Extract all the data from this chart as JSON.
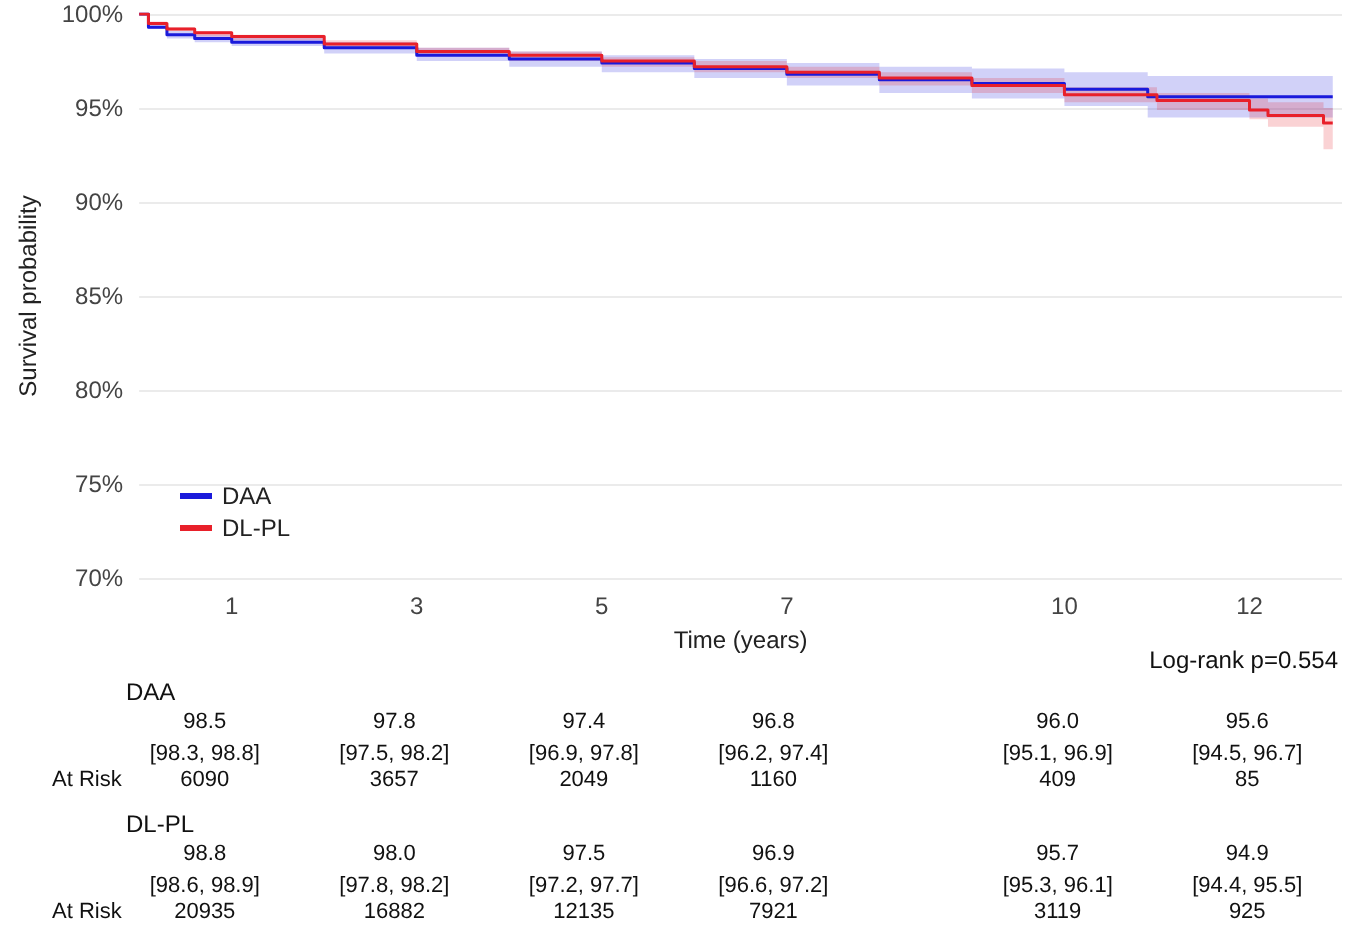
{
  "chart_data": {
    "type": "step",
    "xlabel": "Time (years)",
    "ylabel": "Survival probability",
    "xlim": [
      0,
      13
    ],
    "xticks": [
      1,
      3,
      5,
      7,
      10,
      12
    ],
    "ylim": [
      70,
      100
    ],
    "yticks": [
      {
        "value": 70,
        "label": "70%"
      },
      {
        "value": 75,
        "label": "75%"
      },
      {
        "value": 80,
        "label": "80%"
      },
      {
        "value": 85,
        "label": "85%"
      },
      {
        "value": 90,
        "label": "90%"
      },
      {
        "value": 95,
        "label": "95%"
      },
      {
        "value": 100,
        "label": "100%"
      }
    ],
    "grid": "y",
    "legend": "bottom left",
    "marker": "none",
    "line_style": "solid",
    "series": [
      {
        "name": "DAA",
        "color": "#1a1adb",
        "x": [
          0,
          0.1,
          0.3,
          0.6,
          1,
          2,
          3,
          4,
          5,
          6,
          7,
          8,
          9,
          10,
          10.9,
          12,
          12.9
        ],
        "values": [
          100,
          99.3,
          98.9,
          98.7,
          98.5,
          98.2,
          97.8,
          97.6,
          97.4,
          97.1,
          96.8,
          96.5,
          96.3,
          96.0,
          95.6,
          95.6,
          95.6
        ],
        "lower": [
          100,
          99.2,
          98.7,
          98.5,
          98.3,
          97.9,
          97.5,
          97.2,
          96.9,
          96.6,
          96.2,
          95.8,
          95.5,
          95.1,
          94.5,
          94.5,
          94.5
        ],
        "upper": [
          100,
          99.4,
          99.1,
          98.9,
          98.8,
          98.5,
          98.2,
          98.0,
          97.8,
          97.6,
          97.4,
          97.2,
          97.1,
          96.9,
          96.7,
          96.7,
          96.7
        ]
      },
      {
        "name": "DL-PL",
        "color": "#e8202a",
        "x": [
          0,
          0.1,
          0.3,
          0.6,
          1,
          2,
          3,
          4,
          5,
          6,
          7,
          8,
          9,
          10,
          11,
          12,
          12.2,
          12.8,
          12.9
        ],
        "values": [
          100,
          99.5,
          99.2,
          99.0,
          98.8,
          98.4,
          98.0,
          97.8,
          97.5,
          97.2,
          96.9,
          96.6,
          96.2,
          95.7,
          95.4,
          94.9,
          94.6,
          94.2,
          94.2
        ],
        "lower": [
          100,
          99.4,
          99.1,
          98.8,
          98.6,
          98.2,
          97.8,
          97.5,
          97.2,
          96.9,
          96.6,
          96.2,
          95.8,
          95.3,
          94.9,
          94.4,
          94.0,
          92.8,
          92.8
        ],
        "upper": [
          100,
          99.6,
          99.3,
          99.1,
          98.9,
          98.6,
          98.2,
          98.0,
          97.7,
          97.5,
          97.2,
          96.9,
          96.6,
          96.1,
          95.8,
          95.5,
          95.3,
          95.0,
          95.0
        ]
      }
    ],
    "annotations": [
      "Log-rank p=0.554",
      "DAA",
      "98.5",
      "97.8",
      "97.4",
      "96.8",
      "96.0",
      "95.6",
      "[98.3, 98.8]",
      "[97.5, 98.2]",
      "[96.9, 97.8]",
      "[96.2, 97.4]",
      "[95.1, 96.9]",
      "[94.5, 96.7]",
      "At Risk",
      "6090",
      "3657",
      "2049",
      "1160",
      "409",
      "85",
      "DL-PL",
      "98.8",
      "98.0",
      "97.5",
      "96.9",
      "95.7",
      "94.9",
      "[98.6, 98.9]",
      "[97.8, 98.2]",
      "[97.2, 97.7]",
      "[96.6, 97.2]",
      "[95.3, 96.1]",
      "[94.4, 95.5]",
      "At Risk",
      "20935",
      "16882",
      "12135",
      "7921",
      "3119",
      "925"
    ]
  }
}
